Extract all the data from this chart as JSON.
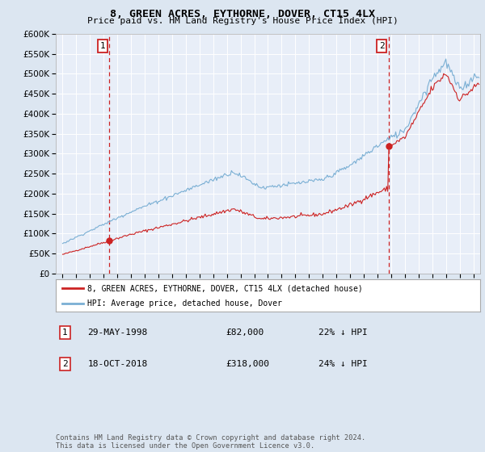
{
  "title": "8, GREEN ACRES, EYTHORNE, DOVER, CT15 4LX",
  "subtitle": "Price paid vs. HM Land Registry's House Price Index (HPI)",
  "hpi_label": "HPI: Average price, detached house, Dover",
  "property_label": "8, GREEN ACRES, EYTHORNE, DOVER, CT15 4LX (detached house)",
  "sale1_date": "29-MAY-1998",
  "sale1_price": 82000,
  "sale1_pct": "22% ↓ HPI",
  "sale2_date": "18-OCT-2018",
  "sale2_price": 318000,
  "sale2_pct": "24% ↓ HPI",
  "hpi_color": "#7aafd4",
  "property_color": "#cc2222",
  "dashed_line_color": "#cc2222",
  "background_color": "#dce6f1",
  "plot_bg_color": "#e8eef8",
  "ylim": [
    0,
    600000
  ],
  "yticks": [
    0,
    50000,
    100000,
    150000,
    200000,
    250000,
    300000,
    350000,
    400000,
    450000,
    500000,
    550000,
    600000
  ],
  "xmin": 1995.0,
  "xmax": 2025.5,
  "sale1_year": 1998.41,
  "sale2_year": 2018.8,
  "footer": "Contains HM Land Registry data © Crown copyright and database right 2024.\nThis data is licensed under the Open Government Licence v3.0."
}
